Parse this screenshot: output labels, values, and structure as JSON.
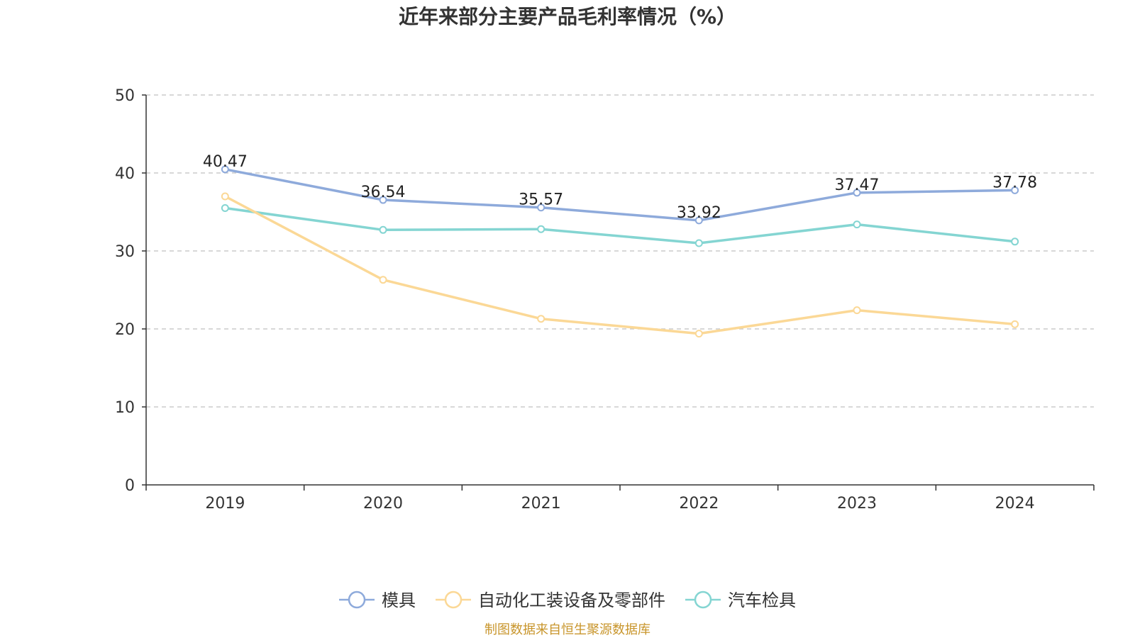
{
  "colors": {
    "series": [
      "#8eaadb",
      "#fbd896",
      "#84d5d2"
    ],
    "source": "#c8952b",
    "grid": "#cccccc",
    "axis": "#333333"
  },
  "chart_data": {
    "type": "line",
    "title": "近年来部分主要产品毛利率情况（%）",
    "categories": [
      "2019",
      "2020",
      "2021",
      "2022",
      "2023",
      "2024"
    ],
    "ylim": [
      0,
      50
    ],
    "yticks": [
      0,
      10,
      20,
      30,
      40,
      50
    ],
    "grid": true,
    "legend_position": "bottom",
    "series": [
      {
        "name": "模具",
        "values": [
          40.47,
          36.54,
          35.57,
          33.92,
          37.47,
          37.78
        ],
        "labels": [
          "40.47",
          "36.54",
          "35.57",
          "33.92",
          "37.47",
          "37.78"
        ]
      },
      {
        "name": "自动化工装设备及零部件",
        "values": [
          37.0,
          26.3,
          21.3,
          19.4,
          22.4,
          20.6
        ]
      },
      {
        "name": "汽车检具",
        "values": [
          35.5,
          32.7,
          32.8,
          31.0,
          33.4,
          31.2
        ]
      }
    ]
  },
  "source_text": "制图数据来自恒生聚源数据库"
}
